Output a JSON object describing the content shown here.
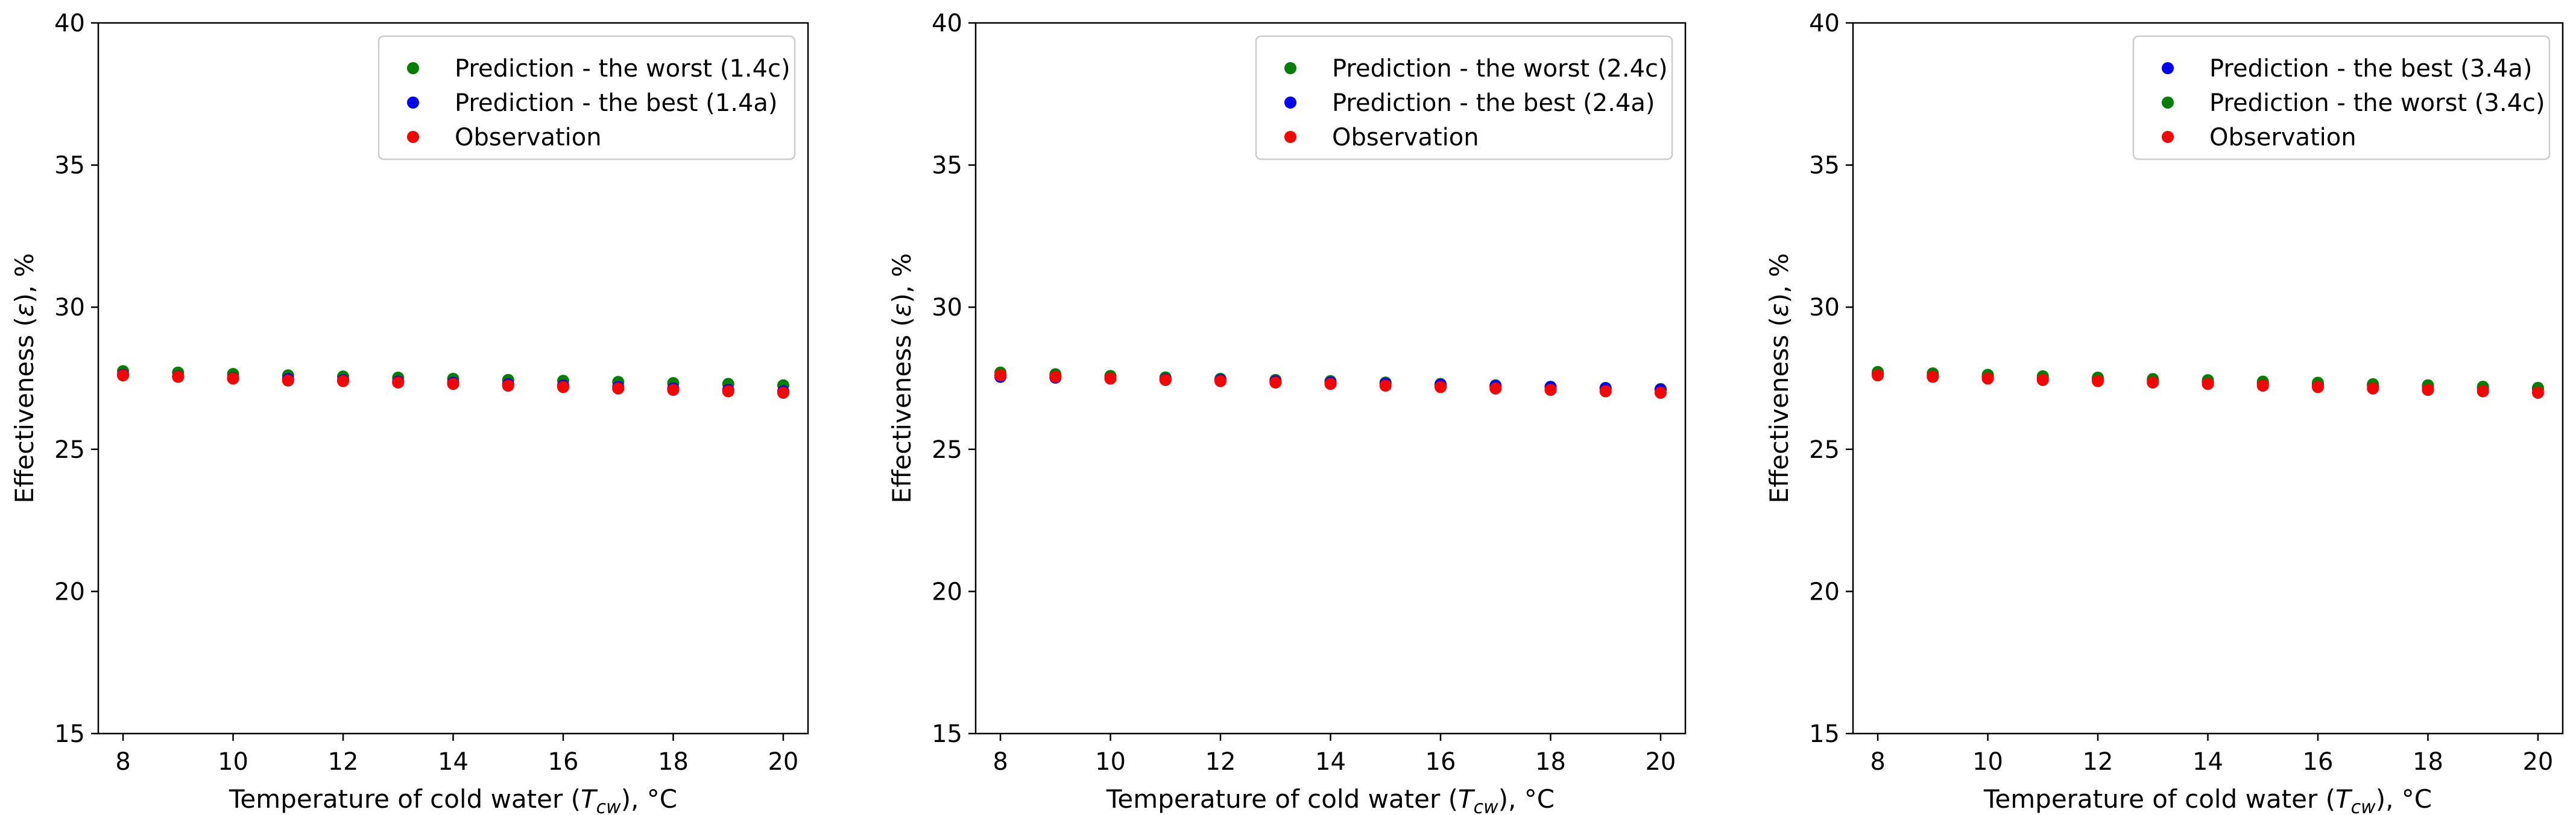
{
  "chart_data": [
    {
      "type": "scatter",
      "xlabel_prefix": "Temperature of cold water (",
      "xlabel_var": "T",
      "xlabel_sub": "cw",
      "xlabel_suffix": "), °C",
      "ylabel_prefix": "Effectiveness (",
      "ylabel_var": "ε",
      "ylabel_suffix": "), %",
      "xlim": [
        7.55,
        20.45
      ],
      "ylim": [
        15,
        40
      ],
      "xticks": [
        8,
        10,
        12,
        14,
        16,
        18,
        20
      ],
      "yticks": [
        15,
        20,
        25,
        30,
        35,
        40
      ],
      "legend_loc": "upper right",
      "x": [
        8,
        9,
        10,
        11,
        12,
        13,
        14,
        15,
        16,
        17,
        18,
        19,
        20
      ],
      "series": [
        {
          "name": "Prediction - the worst (1.4c)",
          "color": "#008000",
          "values": [
            27.75,
            27.7,
            27.65,
            27.6,
            27.56,
            27.52,
            27.48,
            27.44,
            27.41,
            27.37,
            27.33,
            27.3,
            27.25
          ]
        },
        {
          "name": "Prediction - the best (1.4a)",
          "color": "#0000ff",
          "values": [
            27.62,
            27.56,
            27.5,
            27.47,
            27.43,
            27.38,
            27.34,
            27.29,
            27.24,
            27.19,
            27.14,
            27.09,
            27.04
          ]
        },
        {
          "name": "Observation",
          "color": "#ff0000",
          "values": [
            27.6,
            27.55,
            27.49,
            27.42,
            27.4,
            27.35,
            27.3,
            27.24,
            27.19,
            27.14,
            27.09,
            27.04,
            26.99
          ]
        }
      ]
    },
    {
      "type": "scatter",
      "xlabel_prefix": "Temperature of cold water (",
      "xlabel_var": "T",
      "xlabel_sub": "cw",
      "xlabel_suffix": "), °C",
      "ylabel_prefix": "Effectiveness (",
      "ylabel_var": "ε",
      "ylabel_suffix": "), %",
      "xlim": [
        7.55,
        20.45
      ],
      "ylim": [
        15,
        40
      ],
      "xticks": [
        8,
        10,
        12,
        14,
        16,
        18,
        20
      ],
      "yticks": [
        15,
        20,
        25,
        30,
        35,
        40
      ],
      "legend_loc": "upper right",
      "x": [
        8,
        9,
        10,
        11,
        12,
        13,
        14,
        15,
        16,
        17,
        18,
        19,
        20
      ],
      "series": [
        {
          "name": "Prediction - the worst (2.4c)",
          "color": "#008000",
          "values": [
            27.7,
            27.64,
            27.58,
            27.53,
            27.48,
            27.44,
            27.4,
            27.35,
            27.3,
            27.25,
            27.2,
            27.16,
            27.12
          ]
        },
        {
          "name": "Prediction - the best (2.4a)",
          "color": "#0000ff",
          "values": [
            27.55,
            27.52,
            27.49,
            27.46,
            27.43,
            27.39,
            27.35,
            27.31,
            27.27,
            27.23,
            27.19,
            27.15,
            27.1
          ]
        },
        {
          "name": "Observation",
          "color": "#ff0000",
          "values": [
            27.6,
            27.55,
            27.49,
            27.44,
            27.4,
            27.35,
            27.3,
            27.24,
            27.19,
            27.14,
            27.09,
            27.04,
            26.99
          ]
        }
      ]
    },
    {
      "type": "scatter",
      "xlabel_prefix": "Temperature of cold water (",
      "xlabel_var": "T",
      "xlabel_sub": "cw",
      "xlabel_suffix": "), °C",
      "ylabel_prefix": "Effectiveness (",
      "ylabel_var": "ε",
      "ylabel_suffix": "), %",
      "xlim": [
        7.55,
        20.45
      ],
      "ylim": [
        15,
        40
      ],
      "xticks": [
        8,
        10,
        12,
        14,
        16,
        18,
        20
      ],
      "yticks": [
        15,
        20,
        25,
        30,
        35,
        40
      ],
      "legend_loc": "upper right",
      "x": [
        8,
        9,
        10,
        11,
        12,
        13,
        14,
        15,
        16,
        17,
        18,
        19,
        20
      ],
      "series": [
        {
          "name": "Prediction - the best (3.4a)",
          "color": "#0000ff",
          "values": [
            27.66,
            27.6,
            27.55,
            27.5,
            27.46,
            27.42,
            27.37,
            27.33,
            27.29,
            27.25,
            27.2,
            27.16,
            27.12
          ]
        },
        {
          "name": "Prediction - the worst (3.4c)",
          "color": "#008000",
          "values": [
            27.72,
            27.67,
            27.62,
            27.57,
            27.52,
            27.47,
            27.43,
            27.38,
            27.34,
            27.29,
            27.25,
            27.2,
            27.16
          ]
        },
        {
          "name": "Observation",
          "color": "#ff0000",
          "values": [
            27.6,
            27.55,
            27.49,
            27.44,
            27.4,
            27.35,
            27.3,
            27.24,
            27.19,
            27.14,
            27.09,
            27.04,
            26.99
          ]
        }
      ]
    }
  ]
}
